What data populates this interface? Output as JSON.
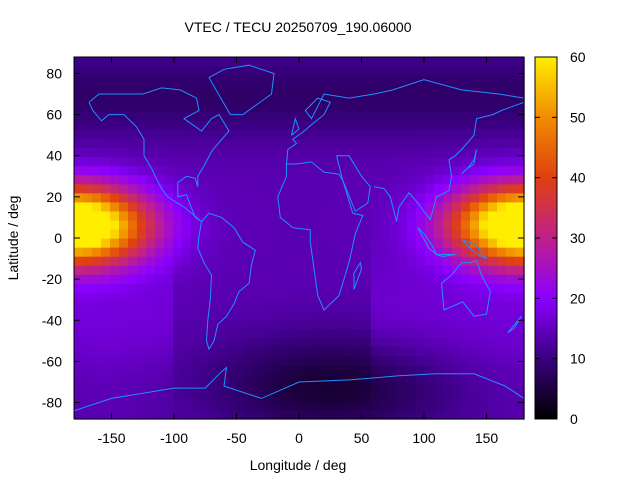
{
  "chart_data": {
    "type": "heatmap",
    "title": "VTEC / TECU 20250709_190.06000",
    "xlabel": "Longitude / deg",
    "ylabel": "Latitude / deg",
    "xlim": [
      -180,
      180
    ],
    "ylim": [
      -88,
      88
    ],
    "xticks": [
      "-150",
      "-100",
      "-50",
      "0",
      "50",
      "100",
      "150"
    ],
    "xtick_values": [
      -150,
      -100,
      -50,
      0,
      50,
      100,
      150
    ],
    "yticks": [
      "80",
      "60",
      "40",
      "20",
      "0",
      "-20",
      "-40",
      "-60",
      "-80"
    ],
    "ytick_values": [
      80,
      60,
      40,
      20,
      0,
      -20,
      -40,
      -60,
      -80
    ],
    "colorbar": {
      "range": [
        0,
        60
      ],
      "ticks": [
        "60",
        "50",
        "40",
        "30",
        "20",
        "10",
        "0"
      ],
      "tick_values": [
        60,
        50,
        40,
        30,
        20,
        10,
        0
      ],
      "palette": [
        "#000000",
        "#3a0080",
        "#8b00ff",
        "#c0208a",
        "#e04010",
        "#f08c00",
        "#ffee00"
      ]
    },
    "field_model": {
      "background_tecu": 14,
      "peaks": [
        {
          "lon": -175,
          "lat": 5,
          "amp_tecu": 33
        },
        {
          "lon": 175,
          "lat": 8,
          "amp_tecu": 30
        }
      ],
      "low_region": {
        "lon": 25,
        "lat": -72,
        "depth_tecu": 10
      }
    },
    "coastline_color": "#1e90ff"
  }
}
